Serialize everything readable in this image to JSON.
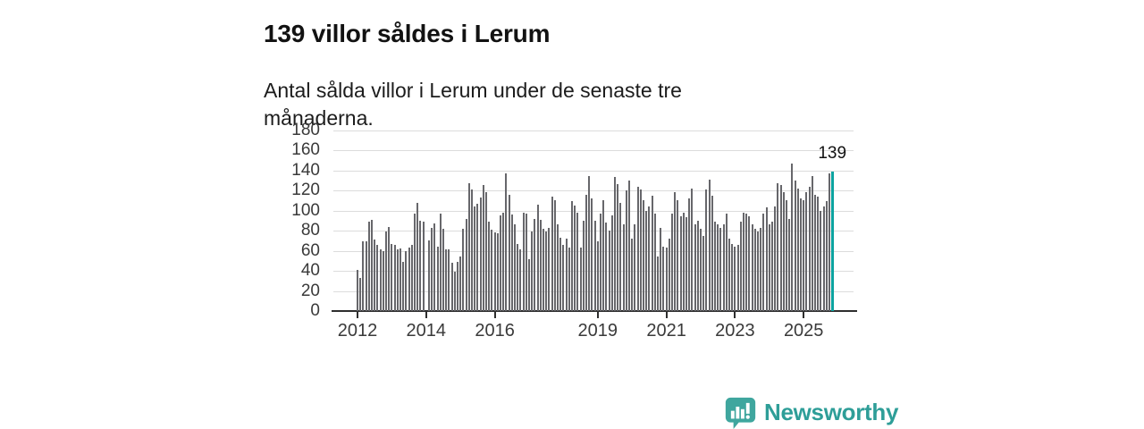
{
  "header": {
    "title": "139 villor såldes i Lerum",
    "subtitle": "Antal sålda villor i Lerum under de senaste tre månaderna."
  },
  "branding": {
    "logo_text": "Newsworthy",
    "logo_icon": "bar-chart-speech-bubble-icon",
    "text_color": "#2e9e98",
    "icon_color": "#3fa69e"
  },
  "chart_data": {
    "type": "bar",
    "title": "139 villor såldes i Lerum",
    "subtitle": "Antal sålda villor i Lerum under de senaste tre månaderna.",
    "xlabel": "",
    "ylabel": "",
    "ylim": [
      0,
      180
    ],
    "yticks": [
      0,
      20,
      40,
      60,
      80,
      100,
      120,
      140,
      160,
      180
    ],
    "xticks": [
      2012,
      2014,
      2016,
      2019,
      2021,
      2023,
      2025
    ],
    "start_year": 2012,
    "start_month": 1,
    "frequency": "monthly",
    "grid": true,
    "legend": false,
    "bar_color": "#67676b",
    "highlight_last": true,
    "highlight_color": "#0ca3a0",
    "annotation": {
      "text": "139",
      "value": 139
    },
    "values": [
      41,
      33,
      69,
      69,
      89,
      91,
      71,
      66,
      61,
      60,
      79,
      84,
      67,
      66,
      61,
      62,
      49,
      60,
      63,
      66,
      97,
      108,
      90,
      89,
      null,
      70,
      83,
      87,
      64,
      97,
      82,
      61,
      61,
      48,
      39,
      49,
      54,
      82,
      92,
      127,
      121,
      104,
      107,
      113,
      125,
      118,
      89,
      81,
      78,
      77,
      95,
      98,
      137,
      116,
      96,
      86,
      67,
      61,
      98,
      97,
      52,
      79,
      92,
      106,
      91,
      82,
      79,
      83,
      114,
      110,
      86,
      73,
      66,
      72,
      63,
      109,
      105,
      98,
      63,
      90,
      116,
      134,
      112,
      90,
      69,
      97,
      110,
      88,
      80,
      95,
      133,
      126,
      108,
      86,
      120,
      130,
      72,
      86,
      124,
      121,
      110,
      100,
      104,
      115,
      97,
      54,
      83,
      64,
      63,
      72,
      97,
      118,
      110,
      94,
      98,
      93,
      112,
      122,
      86,
      90,
      82,
      75,
      121,
      131,
      115,
      89,
      86,
      83,
      86,
      97,
      72,
      67,
      64,
      66,
      89,
      98,
      97,
      94,
      86,
      82,
      79,
      83,
      97,
      103,
      86,
      89,
      104,
      127,
      125,
      118,
      110,
      92,
      147,
      130,
      122,
      112,
      110,
      118,
      124,
      134,
      116,
      114,
      100,
      104,
      109,
      137,
      139
    ]
  }
}
